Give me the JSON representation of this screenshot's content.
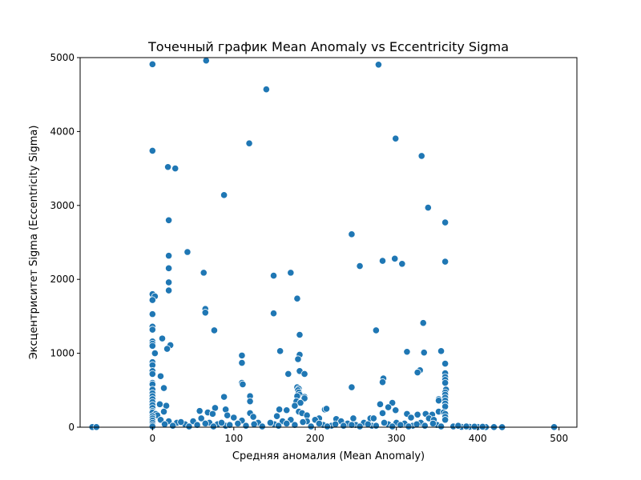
{
  "chart_data": {
    "type": "scatter",
    "title": "Точечный график Mean Anomaly vs Eccentricity Sigma",
    "xlabel": "Средняя аномалия (Mean Anomaly)",
    "ylabel": "Эксцентриситет Sigma (Eccentricity Sigma)",
    "xlim": [
      -89,
      522
    ],
    "ylim": [
      0,
      5000
    ],
    "xticks": [
      0,
      100,
      200,
      300,
      400,
      500
    ],
    "yticks": [
      0,
      1000,
      2000,
      3000,
      4000,
      5000
    ],
    "grid": false,
    "legend": "none",
    "color": "#1f77b4",
    "points": [
      [
        0,
        4910
      ],
      [
        66,
        4960
      ],
      [
        278,
        4905
      ],
      [
        140,
        4570
      ],
      [
        0,
        3740
      ],
      [
        119,
        3840
      ],
      [
        299,
        3905
      ],
      [
        331,
        3670
      ],
      [
        19,
        3520
      ],
      [
        28,
        3500
      ],
      [
        88,
        3140
      ],
      [
        339,
        2970
      ],
      [
        20,
        2800
      ],
      [
        360,
        2770
      ],
      [
        245,
        2610
      ],
      [
        43,
        2370
      ],
      [
        20,
        2320
      ],
      [
        20,
        2150
      ],
      [
        298,
        2280
      ],
      [
        283,
        2250
      ],
      [
        307,
        2210
      ],
      [
        255,
        2180
      ],
      [
        360,
        2240
      ],
      [
        63,
        2090
      ],
      [
        170,
        2090
      ],
      [
        149,
        2050
      ],
      [
        20,
        1960
      ],
      [
        20,
        1850
      ],
      [
        0,
        1800
      ],
      [
        3,
        1770
      ],
      [
        0,
        1720
      ],
      [
        178,
        1740
      ],
      [
        65,
        1600
      ],
      [
        65,
        1550
      ],
      [
        149,
        1540
      ],
      [
        0,
        1530
      ],
      [
        333,
        1410
      ],
      [
        0,
        1360
      ],
      [
        0,
        1320
      ],
      [
        76,
        1310
      ],
      [
        275,
        1310
      ],
      [
        181,
        1250
      ],
      [
        12,
        1200
      ],
      [
        0,
        1160
      ],
      [
        0,
        1130
      ],
      [
        0,
        1100
      ],
      [
        22,
        1110
      ],
      [
        18,
        1060
      ],
      [
        157,
        1030
      ],
      [
        313,
        1020
      ],
      [
        334,
        1010
      ],
      [
        355,
        1030
      ],
      [
        3,
        1000
      ],
      [
        110,
        970
      ],
      [
        181,
        980
      ],
      [
        110,
        870
      ],
      [
        179,
        920
      ],
      [
        0,
        880
      ],
      [
        0,
        840
      ],
      [
        360,
        860
      ],
      [
        181,
        760
      ],
      [
        0,
        760
      ],
      [
        0,
        720
      ],
      [
        360,
        730
      ],
      [
        167,
        720
      ],
      [
        187,
        720
      ],
      [
        10,
        690
      ],
      [
        360,
        680
      ],
      [
        329,
        770
      ],
      [
        326,
        740
      ],
      [
        284,
        660
      ],
      [
        283,
        610
      ],
      [
        360,
        640
      ],
      [
        0,
        600
      ],
      [
        110,
        600
      ],
      [
        111,
        580
      ],
      [
        360,
        600
      ],
      [
        178,
        540
      ],
      [
        180,
        520
      ],
      [
        179,
        500
      ],
      [
        0,
        580
      ],
      [
        245,
        540
      ],
      [
        14,
        530
      ],
      [
        0,
        510
      ],
      [
        361,
        510
      ],
      [
        360,
        470
      ],
      [
        180,
        470
      ],
      [
        181,
        440
      ],
      [
        0,
        460
      ],
      [
        88,
        410
      ],
      [
        120,
        420
      ],
      [
        178,
        420
      ],
      [
        187,
        410
      ],
      [
        187,
        390
      ],
      [
        360,
        440
      ],
      [
        352,
        380
      ],
      [
        352,
        360
      ],
      [
        0,
        420
      ],
      [
        0,
        380
      ],
      [
        0,
        340
      ],
      [
        120,
        350
      ],
      [
        177,
        350
      ],
      [
        182,
        330
      ],
      [
        175,
        290
      ],
      [
        295,
        330
      ],
      [
        280,
        310
      ],
      [
        9,
        310
      ],
      [
        17,
        290
      ],
      [
        0,
        300
      ],
      [
        360,
        400
      ],
      [
        360,
        360
      ],
      [
        360,
        320
      ],
      [
        360,
        280
      ],
      [
        0,
        260
      ],
      [
        77,
        260
      ],
      [
        90,
        240
      ],
      [
        156,
        240
      ],
      [
        165,
        230
      ],
      [
        212,
        240
      ],
      [
        214,
        250
      ],
      [
        268,
        120
      ],
      [
        290,
        270
      ],
      [
        299,
        230
      ],
      [
        313,
        180
      ],
      [
        326,
        170
      ],
      [
        336,
        180
      ],
      [
        344,
        170
      ],
      [
        352,
        210
      ],
      [
        358,
        200
      ],
      [
        0,
        220
      ],
      [
        0,
        200
      ],
      [
        4,
        180
      ],
      [
        6,
        160
      ],
      [
        14,
        210
      ],
      [
        58,
        220
      ],
      [
        68,
        200
      ],
      [
        74,
        180
      ],
      [
        92,
        160
      ],
      [
        120,
        190
      ],
      [
        124,
        140
      ],
      [
        153,
        150
      ],
      [
        180,
        210
      ],
      [
        184,
        190
      ],
      [
        190,
        160
      ],
      [
        205,
        120
      ],
      [
        226,
        110
      ],
      [
        232,
        80
      ],
      [
        247,
        120
      ],
      [
        272,
        120
      ],
      [
        283,
        190
      ],
      [
        300,
        60
      ],
      [
        318,
        130
      ],
      [
        340,
        120
      ],
      [
        346,
        100
      ],
      [
        360,
        180
      ],
      [
        360,
        140
      ],
      [
        360,
        100
      ],
      [
        0,
        150
      ],
      [
        0,
        120
      ],
      [
        0,
        90
      ],
      [
        0,
        60
      ],
      [
        0,
        30
      ],
      [
        0,
        10
      ],
      [
        10,
        100
      ],
      [
        20,
        80
      ],
      [
        30,
        60
      ],
      [
        40,
        40
      ],
      [
        50,
        80
      ],
      [
        60,
        120
      ],
      [
        70,
        60
      ],
      [
        80,
        40
      ],
      [
        90,
        20
      ],
      [
        100,
        130
      ],
      [
        110,
        90
      ],
      [
        130,
        60
      ],
      [
        150,
        40
      ],
      [
        160,
        80
      ],
      [
        170,
        100
      ],
      [
        190,
        80
      ],
      [
        200,
        100
      ],
      [
        210,
        30
      ],
      [
        220,
        20
      ],
      [
        240,
        50
      ],
      [
        250,
        30
      ],
      [
        260,
        60
      ],
      [
        270,
        20
      ],
      [
        290,
        40
      ],
      [
        310,
        50
      ],
      [
        320,
        20
      ],
      [
        330,
        60
      ],
      [
        350,
        30
      ],
      [
        15,
        40
      ],
      [
        25,
        20
      ],
      [
        35,
        70
      ],
      [
        45,
        10
      ],
      [
        55,
        30
      ],
      [
        65,
        50
      ],
      [
        75,
        10
      ],
      [
        85,
        60
      ],
      [
        95,
        30
      ],
      [
        105,
        50
      ],
      [
        115,
        20
      ],
      [
        125,
        40
      ],
      [
        135,
        10
      ],
      [
        145,
        60
      ],
      [
        155,
        20
      ],
      [
        165,
        50
      ],
      [
        175,
        30
      ],
      [
        185,
        70
      ],
      [
        195,
        10
      ],
      [
        205,
        50
      ],
      [
        215,
        10
      ],
      [
        225,
        40
      ],
      [
        235,
        20
      ],
      [
        245,
        30
      ],
      [
        255,
        10
      ],
      [
        265,
        40
      ],
      [
        275,
        20
      ],
      [
        285,
        60
      ],
      [
        295,
        10
      ],
      [
        305,
        30
      ],
      [
        315,
        10
      ],
      [
        325,
        40
      ],
      [
        335,
        20
      ],
      [
        345,
        50
      ],
      [
        355,
        10
      ],
      [
        370,
        10
      ],
      [
        380,
        5
      ],
      [
        390,
        5
      ],
      [
        400,
        3
      ],
      [
        410,
        2
      ],
      [
        420,
        2
      ],
      [
        430,
        1
      ],
      [
        376,
        20
      ],
      [
        386,
        10
      ],
      [
        396,
        8
      ],
      [
        406,
        6
      ],
      [
        -74,
        2
      ],
      [
        -69,
        2
      ],
      [
        494,
        2
      ]
    ]
  }
}
